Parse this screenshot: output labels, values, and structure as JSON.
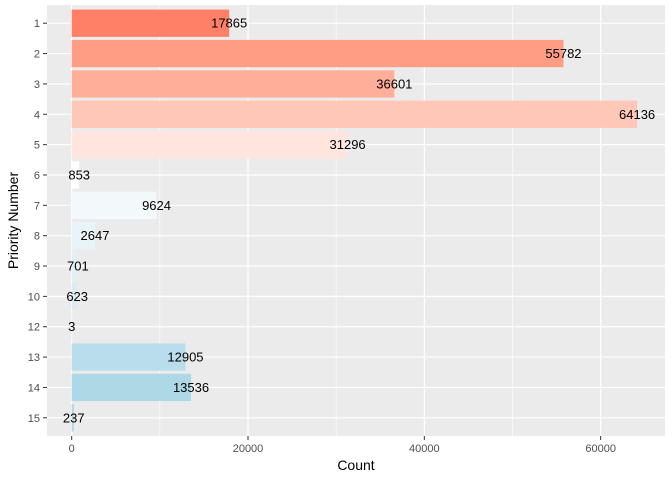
{
  "chart_data": {
    "type": "bar",
    "orientation": "horizontal",
    "xlabel": "Count",
    "ylabel": "Priority Number",
    "categories": [
      "1",
      "2",
      "3",
      "4",
      "5",
      "6",
      "7",
      "8",
      "9",
      "10",
      "12",
      "13",
      "14",
      "15"
    ],
    "values": [
      17865,
      55782,
      36601,
      64136,
      31296,
      853,
      9624,
      2647,
      701,
      623,
      3,
      12905,
      13536,
      237
    ],
    "value_labels": [
      "17865",
      "55782",
      "36601",
      "64136",
      "31296",
      "853",
      "9624",
      "2647",
      "701",
      "623",
      "3",
      "12905",
      "13536",
      "237"
    ],
    "xlim": [
      -2800,
      67300
    ],
    "x_ticks": [
      0,
      20000,
      40000,
      60000
    ],
    "x_tick_labels": [
      "0",
      "20000",
      "40000",
      "60000"
    ],
    "grid": true,
    "legend": "none",
    "colors": [
      "#FF8066",
      "#FF9C84",
      "#FFAF99",
      "#FFC7B8",
      "#FFE5DD",
      "#FFFFFF",
      "#F3F8FA",
      "#E9F4F8",
      "#E2F0F6",
      "#DBEDF3",
      "#D1E8F0",
      "#B9DDEB",
      "#ADD8E6",
      "#ADD8E6"
    ],
    "panel_background": "#EBEBEB",
    "gridline_color": "#FFFFFF"
  }
}
